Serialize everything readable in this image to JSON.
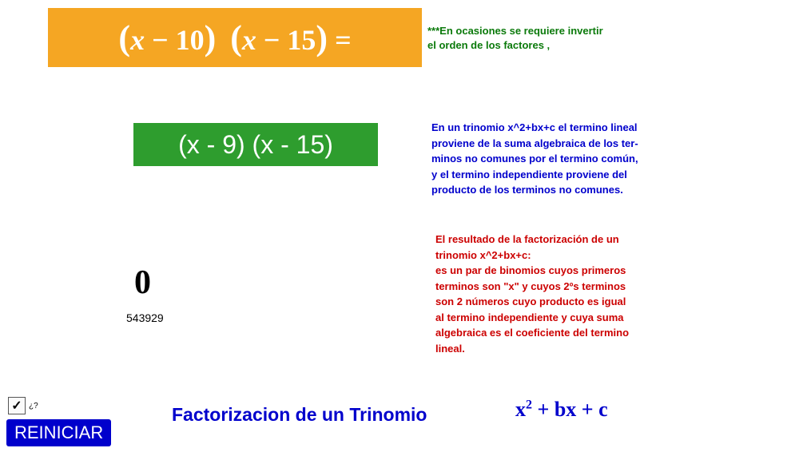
{
  "orange": {
    "expr_parts": {
      "a": "x",
      "b": "10",
      "c": "x",
      "d": "15"
    },
    "bg": "#f5a623",
    "text_color": "#ffffff"
  },
  "green": {
    "expr": "(x - 9) (x - 15)",
    "bg": "#2e9d2e",
    "text_color": "#ffffff"
  },
  "hint": {
    "line1": "***En ocasiones se requiere invertir",
    "line2": "el orden de los factores ,",
    "color": "#0b7a0b"
  },
  "blue_para": {
    "l1": "En un trinomio  x^2+bx+c el termino lineal",
    "l2": "proviene de la suma algebraica de los ter-",
    "l3": "minos no comunes por el termino común,",
    "l4": "y el termino independiente proviene del",
    "l5": "producto de los terminos no comunes.",
    "color": "#0000cc"
  },
  "red_para": {
    "l1": "El resultado de la factorización de un",
    "l2": "trinomio x^2+bx+c:",
    "l3": "es un par de binomios cuyos primeros",
    "l4": "terminos son \"x\" y cuyos 2ºs terminos",
    "l5": "son 2 números cuyo producto es igual",
    "l6": "al termino independiente y cuya suma",
    "l7": "algebraica es el coeficiente del termino",
    "l8": "lineal.",
    "color": "#cc0000"
  },
  "values": {
    "big": "0",
    "small": "543929"
  },
  "controls": {
    "checkbox_checked": true,
    "checkbox_label": "¿?",
    "reset_label": "REINICIAR"
  },
  "footer": {
    "title": "Factorizacion de un Trinomio",
    "formula_x": "x",
    "formula_rest": " + bx + c",
    "color": "#0000cc"
  }
}
